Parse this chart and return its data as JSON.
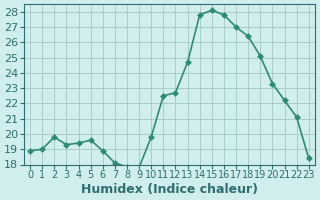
{
  "x": [
    0,
    1,
    2,
    3,
    4,
    5,
    6,
    7,
    8,
    9,
    10,
    11,
    12,
    13,
    14,
    15,
    16,
    17,
    18,
    19,
    20,
    21,
    22,
    23
  ],
  "y": [
    18.9,
    19.0,
    19.8,
    19.3,
    19.4,
    19.6,
    18.9,
    18.1,
    17.85,
    17.8,
    19.8,
    22.5,
    22.7,
    24.7,
    27.8,
    28.1,
    27.8,
    27.0,
    26.4,
    25.1,
    23.3,
    22.2,
    21.1,
    18.4
  ],
  "line_color": "#2e8b75",
  "marker": "D",
  "marker_size": 3,
  "bg_color": "#d0eeee",
  "grid_color": "#aacccc",
  "xlabel": "Humidex (Indice chaleur)",
  "ylim": [
    18,
    28.5
  ],
  "xlim": [
    -0.5,
    23.5
  ],
  "yticks": [
    18,
    19,
    20,
    21,
    22,
    23,
    24,
    25,
    26,
    27,
    28
  ],
  "xtick_labels": [
    "0",
    "1",
    "2",
    "3",
    "4",
    "5",
    "6",
    "7",
    "8",
    "9",
    "10",
    "11",
    "12",
    "13",
    "14",
    "15",
    "16",
    "17",
    "18",
    "19",
    "20",
    "21",
    "22",
    "23"
  ],
  "tick_color": "#2e6e6e",
  "label_color": "#2e6e6e",
  "spine_color": "#2e6e6e",
  "font_size": 8,
  "xlabel_fontsize": 9
}
